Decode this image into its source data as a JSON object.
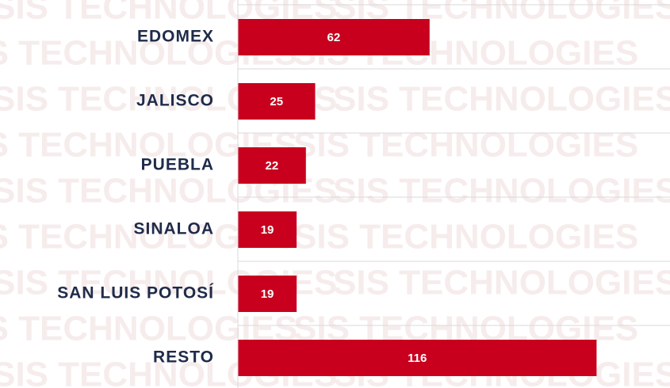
{
  "watermark": "SIS TECHNOLOGIES",
  "chart_data": {
    "type": "bar",
    "orientation": "horizontal",
    "categories": [
      "EDOMEX",
      "JALISCO",
      "PUEBLA",
      "SINALOA",
      "SAN LUIS POTOSÍ",
      "RESTO"
    ],
    "values": [
      62,
      25,
      22,
      19,
      19,
      116
    ],
    "color": "#c8001e",
    "xlim": [
      0,
      140
    ]
  }
}
